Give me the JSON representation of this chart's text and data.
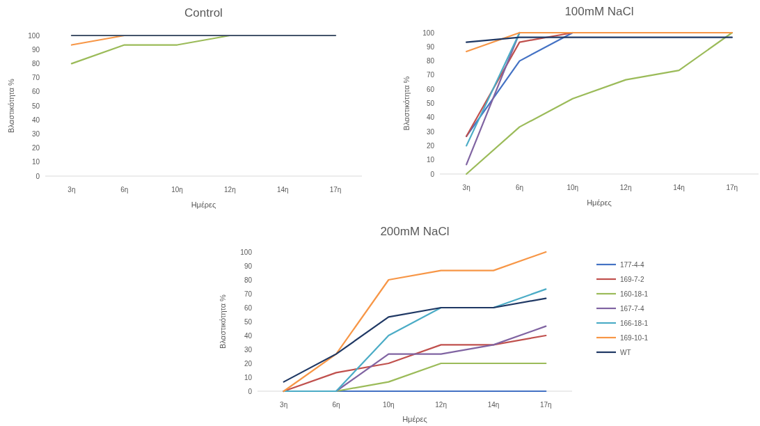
{
  "chart_data": [
    {
      "type": "line",
      "title": "Control",
      "xlabel": "Ημέρες",
      "ylabel": "Βλαστικότητα %",
      "categories": [
        "3η",
        "6η",
        "10η",
        "12η",
        "14η",
        "17η"
      ],
      "ylim": [
        0,
        100
      ],
      "yticks": [
        0,
        10,
        20,
        30,
        40,
        50,
        60,
        70,
        80,
        90,
        100
      ],
      "grid": false,
      "legend": false,
      "series": [
        {
          "color": "#9bbb59",
          "values": [
            80,
            93.3,
            93.3,
            100,
            null,
            null
          ]
        },
        {
          "color": "#f79646",
          "values": [
            93.3,
            100,
            null,
            null,
            null,
            null
          ]
        },
        {
          "color": "#44546a",
          "values": [
            100,
            100,
            100,
            100,
            100,
            100
          ]
        }
      ]
    },
    {
      "type": "line",
      "title": "100mM NaCl",
      "xlabel": "Ημέρες",
      "ylabel": "Βλαστικότητα %",
      "categories": [
        "3η",
        "6η",
        "10η",
        "12η",
        "14η",
        "17η"
      ],
      "ylim": [
        0,
        100
      ],
      "yticks": [
        0,
        10,
        20,
        30,
        40,
        50,
        60,
        70,
        80,
        90,
        100
      ],
      "grid": false,
      "legend": false,
      "series": [
        {
          "color": "#4472c4",
          "values": [
            26.7,
            80,
            100,
            null,
            null,
            null
          ]
        },
        {
          "color": "#c0504d",
          "values": [
            26.7,
            93.3,
            100,
            null,
            null,
            null
          ]
        },
        {
          "color": "#9bbb59",
          "values": [
            0,
            33.3,
            53.3,
            66.7,
            73.3,
            100
          ]
        },
        {
          "color": "#8064a2",
          "values": [
            6.7,
            100,
            null,
            null,
            null,
            null
          ]
        },
        {
          "color": "#4bacc6",
          "values": [
            20,
            100,
            null,
            null,
            null,
            null
          ]
        },
        {
          "color": "#f79646",
          "values": [
            86.7,
            100,
            100,
            100,
            100,
            100
          ]
        },
        {
          "color": "#1f3864",
          "values": [
            93.3,
            96.7,
            96.7,
            96.7,
            96.7,
            96.7
          ]
        }
      ]
    },
    {
      "type": "line",
      "title": "200mM NaCl",
      "xlabel": "Ημέρες",
      "ylabel": "Βλαστικότητα %",
      "categories": [
        "3η",
        "6η",
        "10η",
        "12η",
        "14η",
        "17η"
      ],
      "ylim": [
        0,
        100
      ],
      "yticks": [
        0,
        10,
        20,
        30,
        40,
        50,
        60,
        70,
        80,
        90,
        100
      ],
      "grid": false,
      "legend": "right",
      "series": [
        {
          "name": "177-4-4",
          "color": "#4472c4",
          "values": [
            0,
            0,
            0,
            0,
            0,
            0
          ]
        },
        {
          "name": "169-7-2",
          "color": "#c0504d",
          "values": [
            0,
            13.3,
            20,
            33.3,
            33.3,
            40
          ]
        },
        {
          "name": "160-18-1",
          "color": "#9bbb59",
          "values": [
            0,
            0,
            6.7,
            20,
            20,
            20
          ]
        },
        {
          "name": "167-7-4",
          "color": "#8064a2",
          "values": [
            0,
            0,
            26.7,
            26.7,
            33.3,
            46.7
          ]
        },
        {
          "name": "166-18-1",
          "color": "#4bacc6",
          "values": [
            0,
            0,
            40,
            60,
            60,
            73.3
          ]
        },
        {
          "name": "169-10-1",
          "color": "#f79646",
          "values": [
            0,
            26.7,
            80,
            86.7,
            86.7,
            100
          ]
        },
        {
          "name": "WT",
          "color": "#1f3864",
          "values": [
            6.7,
            26.7,
            53.3,
            60,
            60,
            66.7
          ]
        }
      ]
    }
  ]
}
